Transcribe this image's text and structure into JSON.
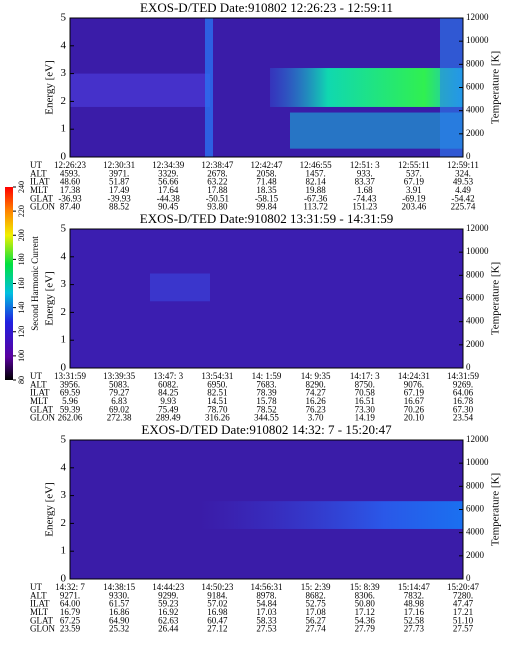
{
  "colorbar": {
    "label": "Second Harmonic Current",
    "lim": [
      80,
      240
    ],
    "ticks": [
      80,
      100,
      120,
      140,
      160,
      180,
      200,
      220,
      240
    ]
  },
  "chart_data": [
    {
      "type": "spectrogram",
      "title": "EXOS-D/TED   Date:910802   12:26:23 - 12:59:11",
      "ylabel": "Energy [eV]",
      "ylim": [
        0,
        5
      ],
      "yticks": [
        0,
        1,
        2,
        3,
        4,
        5
      ],
      "y2label": "Temperature [K]",
      "y2lim": [
        0,
        12000
      ],
      "y2ticks": [
        0,
        2000,
        4000,
        6000,
        8000,
        10000,
        12000
      ],
      "table": {
        "row_labels": [
          "UT",
          "ALT",
          "ILAT",
          "MLT",
          "GLAT",
          "GLON"
        ],
        "rows": [
          [
            "12:26:23",
            "12:30:31",
            "12:34:39",
            "12:38:47",
            "12:42:47",
            "12:46:55",
            "12:51: 3",
            "12:55:11",
            "12:59:11"
          ],
          [
            "4593.",
            "3971.",
            "3329.",
            "2678.",
            "2058.",
            "1457.",
            "933.",
            "537.",
            "324."
          ],
          [
            "48.60",
            "51.87",
            "56.66",
            "63.22",
            "71.48",
            "82.14",
            "83.37",
            "67.19",
            "49.53"
          ],
          [
            "17.38",
            "17.49",
            "17.64",
            "17.88",
            "18.35",
            "19.88",
            "1.68",
            "3.91",
            "4.49"
          ],
          [
            "-36.93",
            "-39.93",
            "-44.38",
            "-50.51",
            "-58.15",
            "-67.36",
            "-74.43",
            "-69.19",
            "-54.42"
          ],
          [
            "87.40",
            "88.52",
            "90.45",
            "93.80",
            "99.84",
            "113.72",
            "151.23",
            "203.46",
            "225.74"
          ]
        ]
      }
    },
    {
      "type": "spectrogram",
      "title": "EXOS-D/TED   Date:910802   13:31:59 - 14:31:59",
      "ylabel": "Energy [eV]",
      "ylim": [
        0,
        5
      ],
      "yticks": [
        0,
        1,
        2,
        3,
        4,
        5
      ],
      "y2label": "Temperature [K]",
      "y2lim": [
        0,
        12000
      ],
      "y2ticks": [
        0,
        2000,
        4000,
        6000,
        8000,
        10000,
        12000
      ],
      "table": {
        "row_labels": [
          "UT",
          "ALT",
          "ILAT",
          "MLT",
          "GLAT",
          "GLON"
        ],
        "rows": [
          [
            "13:31:59",
            "13:39:35",
            "13:47: 3",
            "13:54:31",
            "14: 1:59",
            "14: 9:35",
            "14:17: 3",
            "14:24:31",
            "14:31:59"
          ],
          [
            "3956.",
            "5083.",
            "6082.",
            "6950.",
            "7683.",
            "8290.",
            "8750.",
            "9076.",
            "9269."
          ],
          [
            "69.59",
            "79.27",
            "84.25",
            "82.51",
            "78.39",
            "74.27",
            "70.58",
            "67.19",
            "64.06"
          ],
          [
            "5.96",
            "6.83",
            "9.93",
            "14.51",
            "15.78",
            "16.26",
            "16.51",
            "16.67",
            "16.78"
          ],
          [
            "59.39",
            "69.02",
            "75.49",
            "78.70",
            "78.52",
            "76.23",
            "73.30",
            "70.26",
            "67.30"
          ],
          [
            "262.06",
            "272.38",
            "289.49",
            "316.26",
            "344.55",
            "3.70",
            "14.19",
            "20.10",
            "23.54"
          ]
        ]
      }
    },
    {
      "type": "spectrogram",
      "title": "EXOS-D/TED   Date:910802   14:32: 7 - 15:20:47",
      "ylabel": "Energy [eV]",
      "ylim": [
        0,
        5
      ],
      "yticks": [
        0,
        1,
        2,
        3,
        4,
        5
      ],
      "y2label": "Temperature [K]",
      "y2lim": [
        0,
        12000
      ],
      "y2ticks": [
        0,
        2000,
        4000,
        6000,
        8000,
        10000,
        12000
      ],
      "table": {
        "row_labels": [
          "UT",
          "ALT",
          "ILAT",
          "MLT",
          "GLAT",
          "GLON"
        ],
        "rows": [
          [
            "14:32: 7",
            "14:38:15",
            "14:44:23",
            "14:50:23",
            "14:56:31",
            "15: 2:39",
            "15: 8:39",
            "15:14:47",
            "15:20:47"
          ],
          [
            "9271.",
            "9330.",
            "9299.",
            "9184.",
            "8978.",
            "8682.",
            "8306.",
            "7832.",
            "7280."
          ],
          [
            "64.00",
            "61.57",
            "59.23",
            "57.02",
            "54.84",
            "52.75",
            "50.80",
            "48.98",
            "47.47"
          ],
          [
            "16.79",
            "16.86",
            "16.92",
            "16.98",
            "17.03",
            "17.08",
            "17.12",
            "17.16",
            "17.21"
          ],
          [
            "67.25",
            "64.90",
            "62.63",
            "60.47",
            "58.33",
            "56.27",
            "54.36",
            "52.58",
            "51.10"
          ],
          [
            "23.59",
            "25.32",
            "26.44",
            "27.12",
            "27.53",
            "27.74",
            "27.79",
            "27.73",
            "27.57"
          ]
        ]
      }
    }
  ]
}
